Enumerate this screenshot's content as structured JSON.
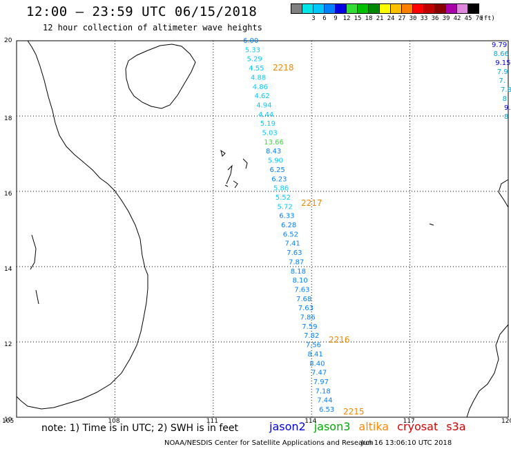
{
  "header": {
    "title": "12:00 – 23:59 UTC 06/15/2018",
    "subtitle": "12 hour collection of altimeter wave heights"
  },
  "legend": {
    "unit": "(ft)",
    "bins": [
      {
        "label": "",
        "color": "#808080"
      },
      {
        "label": "3",
        "color": "#00e5e5"
      },
      {
        "label": "6",
        "color": "#00c8ff"
      },
      {
        "label": "9",
        "color": "#0080ff"
      },
      {
        "label": "12",
        "color": "#0000e0"
      },
      {
        "label": "15",
        "color": "#33dd33"
      },
      {
        "label": "18",
        "color": "#00c000"
      },
      {
        "label": "21",
        "color": "#008800"
      },
      {
        "label": "24",
        "color": "#ffff00"
      },
      {
        "label": "27",
        "color": "#ffc000"
      },
      {
        "label": "30",
        "color": "#ff8000"
      },
      {
        "label": "33",
        "color": "#ff0000"
      },
      {
        "label": "36",
        "color": "#c00000"
      },
      {
        "label": "39",
        "color": "#880000"
      },
      {
        "label": "42",
        "color": "#aa00aa"
      },
      {
        "label": "45",
        "color": "#dd88dd"
      },
      {
        "label": "70",
        "color": "#000000"
      }
    ]
  },
  "map": {
    "lon_labels": [
      "105",
      "108",
      "111",
      "114",
      "117",
      "120"
    ],
    "lat_labels": [
      "20",
      "18",
      "16",
      "14",
      "12",
      "10"
    ],
    "grid": true,
    "tracks": [
      {
        "satellite": "jason3",
        "pass_labels": [
          "2218",
          "2217",
          "2216",
          "2215"
        ],
        "heights": [
          "6.00",
          "5.33",
          "5.29",
          "4.55",
          "4.88",
          "4.86",
          "4.62",
          "4.94",
          "4.44",
          "5.19",
          "5.03",
          "13.66",
          "8.43",
          "5.90",
          "6.25",
          "6.23",
          "5.86",
          "5.52",
          "5.72",
          "6.33",
          "6.28",
          "6.52",
          "7.41",
          "7.63",
          "7.87",
          "8.18",
          "8.10",
          "7.63",
          "7.68",
          "7.63",
          "7.86",
          "7.59",
          "7.82",
          "7.56",
          "8.41",
          "8.40",
          "7.47",
          "7.97",
          "7.18",
          "7.44",
          "6.53"
        ]
      },
      {
        "satellite": "jason2",
        "heights": [
          "9.79",
          "8.66",
          "9.15",
          "7.9",
          "7.",
          "7.8",
          "8.",
          "9.",
          "8"
        ]
      }
    ]
  },
  "note": "note:  1) Time is in UTC;  2) SWH is in feet",
  "satellites": [
    {
      "name": "jason2",
      "color": "#0000dd"
    },
    {
      "name": "jason3",
      "color": "#00aa00"
    },
    {
      "name": "altika",
      "color": "#ff8800"
    },
    {
      "name": "cryosat",
      "color": "#dd0000"
    },
    {
      "name": "s3a",
      "color": "#cc0000"
    }
  ],
  "footer": {
    "credit": "NOAA/NESDIS Center for Satellite Applications and Research",
    "timestamp": "Jun 16 13:06:10 UTC 2018"
  }
}
